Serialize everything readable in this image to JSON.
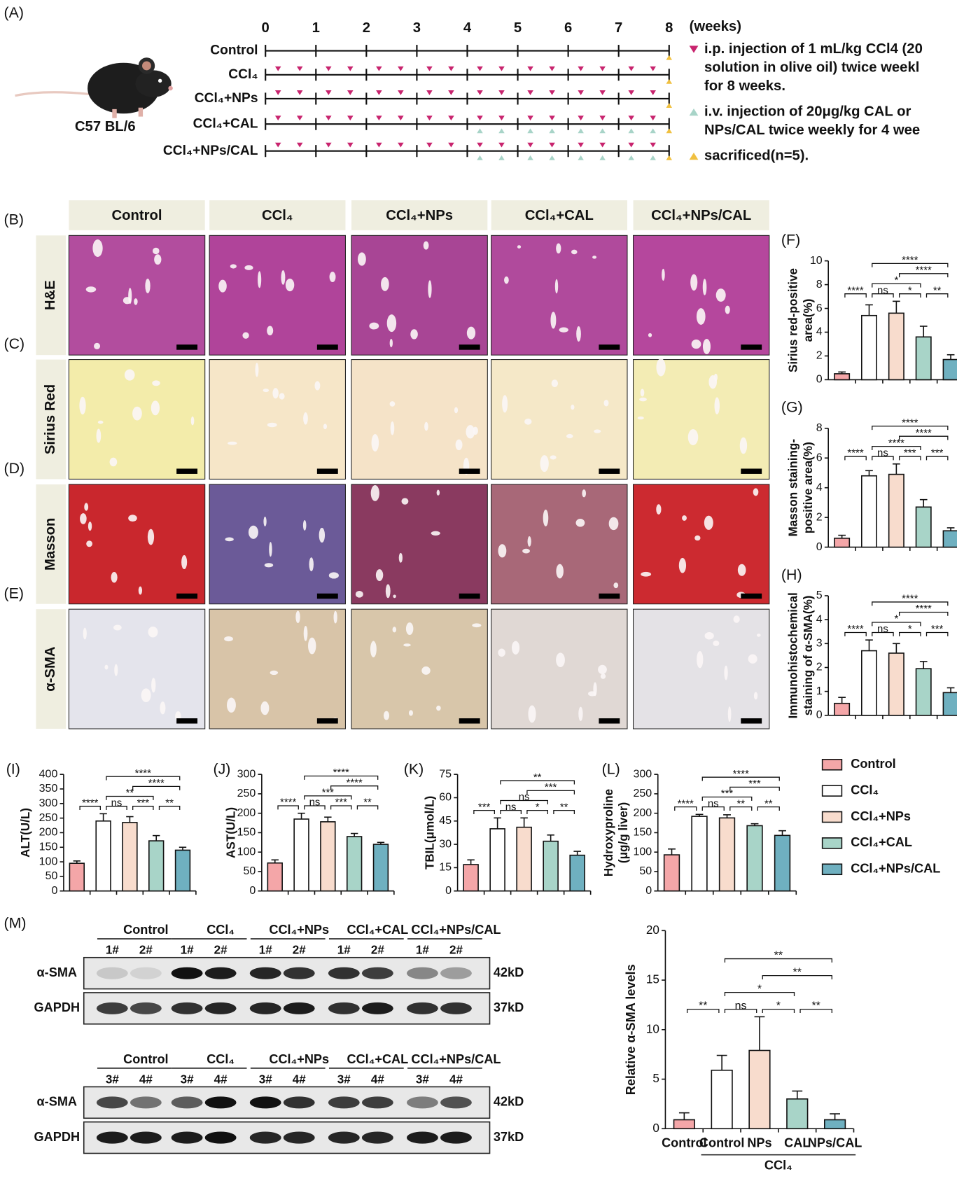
{
  "timeline": {
    "label": "(A)",
    "strain": "C57 BL/6",
    "unit": "(weeks)",
    "xlim": [
      0,
      8
    ],
    "xticks": [
      0,
      1,
      2,
      3,
      4,
      5,
      6,
      7,
      8
    ],
    "groups": [
      "Control",
      "CCl₄",
      "CCl₄+NPs",
      "CCl₄+CAL",
      "CCl₄+NPs/CAL"
    ],
    "legend": [
      {
        "color": "#c8246e",
        "text": [
          "i.p. injection of 1 mL/kg CCl4 (20",
          "solution in olive oil) twice weekl",
          "for 8 weeks."
        ]
      },
      {
        "color": "#a8d4c8",
        "text": [
          "i.v. injection of 20μg/kg CAL or",
          "NPs/CAL twice weekly for 4 wee"
        ]
      },
      {
        "color": "#f0c040",
        "text": [
          "sacrificed(n=5)."
        ]
      }
    ]
  },
  "histology": {
    "columns": [
      "Control",
      "CCl₄",
      "CCl₄+NPs",
      "CCl₄+CAL",
      "CCl₄+NPs/CAL"
    ],
    "rows": [
      {
        "label": "(B)",
        "name": "H&E"
      },
      {
        "label": "(C)",
        "name": "Sirius Red"
      },
      {
        "label": "(D)",
        "name": "Masson"
      },
      {
        "label": "(E)",
        "name": "α-SMA"
      }
    ]
  },
  "legend": {
    "names": [
      "Control",
      "CCl₄",
      "CCl₄+NPs",
      "CCl₄+CAL",
      "CCl₄+NPs/CAL"
    ],
    "colors": [
      "#f4a6a8",
      "#ffffff",
      "#f8dccd",
      "#a8d4c8",
      "#6fb0c0"
    ]
  },
  "chart_data": [
    {
      "type": "bar",
      "label": "(F)",
      "ylabel": [
        "Sirius red-positive",
        "area(%)"
      ],
      "ylim": [
        0,
        10
      ],
      "yticks": [
        0,
        2,
        4,
        6,
        8,
        10
      ],
      "categories": [
        null,
        null,
        null,
        null,
        null
      ],
      "values": [
        0.5,
        5.4,
        5.6,
        3.6,
        1.7
      ],
      "errors": [
        0.15,
        0.9,
        1.0,
        0.9,
        0.4
      ],
      "colors": [
        "#f4a6a8",
        "#ffffff",
        "#f8dccd",
        "#a8d4c8",
        "#6fb0c0"
      ],
      "annotations": [
        {
          "text": "****",
          "pair": [
            0,
            1
          ],
          "level": 0
        },
        {
          "text": "ns",
          "pair": [
            1,
            2
          ],
          "level": 0
        },
        {
          "text": "*",
          "pair": [
            2,
            3
          ],
          "level": 0
        },
        {
          "text": "**",
          "pair": [
            3,
            4
          ],
          "level": 0
        },
        {
          "text": "*",
          "pair": [
            1,
            3
          ],
          "level": 1
        },
        {
          "text": "****",
          "pair": [
            2,
            4
          ],
          "level": 2
        },
        {
          "text": "****",
          "pair": [
            1,
            4
          ],
          "level": 3
        }
      ]
    },
    {
      "type": "bar",
      "label": "(G)",
      "ylabel": [
        "Masson staining-",
        "positive area(%)"
      ],
      "ylim": [
        0,
        8
      ],
      "yticks": [
        0,
        2,
        4,
        6,
        8
      ],
      "categories": [
        null,
        null,
        null,
        null,
        null
      ],
      "values": [
        0.6,
        4.8,
        4.9,
        2.7,
        1.1
      ],
      "errors": [
        0.2,
        0.35,
        0.7,
        0.5,
        0.2
      ],
      "colors": [
        "#f4a6a8",
        "#ffffff",
        "#f8dccd",
        "#a8d4c8",
        "#6fb0c0"
      ],
      "annotations": [
        {
          "text": "****",
          "pair": [
            0,
            1
          ],
          "level": 0
        },
        {
          "text": "ns",
          "pair": [
            1,
            2
          ],
          "level": 0
        },
        {
          "text": "***",
          "pair": [
            2,
            3
          ],
          "level": 0
        },
        {
          "text": "***",
          "pair": [
            3,
            4
          ],
          "level": 0
        },
        {
          "text": "****",
          "pair": [
            1,
            3
          ],
          "level": 1
        },
        {
          "text": "****",
          "pair": [
            2,
            4
          ],
          "level": 2
        },
        {
          "text": "****",
          "pair": [
            1,
            4
          ],
          "level": 3
        }
      ]
    },
    {
      "type": "bar",
      "label": "(H)",
      "ylabel": [
        "Immunohistochemical",
        "staining of α-SMA(%)"
      ],
      "ylim": [
        0,
        5
      ],
      "yticks": [
        0,
        1,
        2,
        3,
        4,
        5
      ],
      "categories": [
        null,
        null,
        null,
        null,
        null
      ],
      "values": [
        0.5,
        2.7,
        2.6,
        1.95,
        0.95
      ],
      "errors": [
        0.25,
        0.45,
        0.4,
        0.3,
        0.2
      ],
      "colors": [
        "#f4a6a8",
        "#ffffff",
        "#f8dccd",
        "#a8d4c8",
        "#6fb0c0"
      ],
      "annotations": [
        {
          "text": "****",
          "pair": [
            0,
            1
          ],
          "level": 0
        },
        {
          "text": "ns",
          "pair": [
            1,
            2
          ],
          "level": 0
        },
        {
          "text": "*",
          "pair": [
            2,
            3
          ],
          "level": 0
        },
        {
          "text": "***",
          "pair": [
            3,
            4
          ],
          "level": 0
        },
        {
          "text": "*",
          "pair": [
            1,
            3
          ],
          "level": 1
        },
        {
          "text": "****",
          "pair": [
            2,
            4
          ],
          "level": 2
        },
        {
          "text": "****",
          "pair": [
            1,
            4
          ],
          "level": 3
        }
      ]
    },
    {
      "type": "bar",
      "label": "(I)",
      "ylabel": [
        "ALT(U/L)"
      ],
      "ylim": [
        0,
        400
      ],
      "yticks": [
        0,
        50,
        100,
        150,
        200,
        250,
        300,
        350,
        400
      ],
      "categories": [
        null,
        null,
        null,
        null,
        null
      ],
      "values": [
        95,
        240,
        235,
        172,
        140
      ],
      "errors": [
        8,
        25,
        20,
        18,
        10
      ],
      "colors": [
        "#f4a6a8",
        "#ffffff",
        "#f8dccd",
        "#a8d4c8",
        "#6fb0c0"
      ],
      "annotations": [
        {
          "text": "****",
          "pair": [
            0,
            1
          ],
          "level": 0
        },
        {
          "text": "ns",
          "pair": [
            1,
            2
          ],
          "level": 0
        },
        {
          "text": "***",
          "pair": [
            2,
            3
          ],
          "level": 0
        },
        {
          "text": "**",
          "pair": [
            3,
            4
          ],
          "level": 0
        },
        {
          "text": "**",
          "pair": [
            1,
            3
          ],
          "level": 1
        },
        {
          "text": "****",
          "pair": [
            2,
            4
          ],
          "level": 2
        },
        {
          "text": "****",
          "pair": [
            1,
            4
          ],
          "level": 3
        }
      ]
    },
    {
      "type": "bar",
      "label": "(J)",
      "ylabel": [
        "AST(U/L)"
      ],
      "ylim": [
        0,
        300
      ],
      "yticks": [
        0,
        50,
        100,
        150,
        200,
        250,
        300
      ],
      "categories": [
        null,
        null,
        null,
        null,
        null
      ],
      "values": [
        72,
        185,
        178,
        140,
        120
      ],
      "errors": [
        8,
        15,
        12,
        8,
        5
      ],
      "colors": [
        "#f4a6a8",
        "#ffffff",
        "#f8dccd",
        "#a8d4c8",
        "#6fb0c0"
      ],
      "annotations": [
        {
          "text": "****",
          "pair": [
            0,
            1
          ],
          "level": 0
        },
        {
          "text": "ns",
          "pair": [
            1,
            2
          ],
          "level": 0
        },
        {
          "text": "***",
          "pair": [
            2,
            3
          ],
          "level": 0
        },
        {
          "text": "**",
          "pair": [
            3,
            4
          ],
          "level": 0
        },
        {
          "text": "***",
          "pair": [
            1,
            3
          ],
          "level": 1
        },
        {
          "text": "****",
          "pair": [
            2,
            4
          ],
          "level": 2
        },
        {
          "text": "****",
          "pair": [
            1,
            4
          ],
          "level": 3
        }
      ]
    },
    {
      "type": "bar",
      "label": "(K)",
      "ylabel": [
        "TBIL(μmol/L)"
      ],
      "ylim": [
        0,
        75
      ],
      "yticks": [
        0,
        15,
        30,
        45,
        60,
        75
      ],
      "categories": [
        null,
        null,
        null,
        null,
        null
      ],
      "values": [
        17,
        40,
        41,
        32,
        23
      ],
      "errors": [
        3,
        7,
        6,
        4,
        2.5
      ],
      "colors": [
        "#f4a6a8",
        "#ffffff",
        "#f8dccd",
        "#a8d4c8",
        "#6fb0c0"
      ],
      "annotations": [
        {
          "text": "***",
          "pair": [
            0,
            1
          ],
          "level": 0
        },
        {
          "text": "ns",
          "pair": [
            1,
            2
          ],
          "level": 0
        },
        {
          "text": "*",
          "pair": [
            2,
            3
          ],
          "level": 0
        },
        {
          "text": "**",
          "pair": [
            3,
            4
          ],
          "level": 0
        },
        {
          "text": "ns",
          "pair": [
            1,
            3
          ],
          "level": 1
        },
        {
          "text": "***",
          "pair": [
            2,
            4
          ],
          "level": 2
        },
        {
          "text": "**",
          "pair": [
            1,
            4
          ],
          "level": 3
        }
      ]
    },
    {
      "type": "bar",
      "label": "(L)",
      "ylabel": [
        "Hydroxyproline",
        "(μg/g liver)"
      ],
      "ylim": [
        0,
        300
      ],
      "yticks": [
        0,
        50,
        100,
        150,
        200,
        250,
        300
      ],
      "categories": [
        null,
        null,
        null,
        null,
        null
      ],
      "values": [
        93,
        192,
        188,
        168,
        143
      ],
      "errors": [
        15,
        5,
        8,
        5,
        12
      ],
      "colors": [
        "#f4a6a8",
        "#ffffff",
        "#f8dccd",
        "#a8d4c8",
        "#6fb0c0"
      ],
      "annotations": [
        {
          "text": "****",
          "pair": [
            0,
            1
          ],
          "level": 0
        },
        {
          "text": "ns",
          "pair": [
            1,
            2
          ],
          "level": 0
        },
        {
          "text": "**",
          "pair": [
            2,
            3
          ],
          "level": 0
        },
        {
          "text": "**",
          "pair": [
            3,
            4
          ],
          "level": 0
        },
        {
          "text": "***",
          "pair": [
            1,
            3
          ],
          "level": 1
        },
        {
          "text": "***",
          "pair": [
            2,
            4
          ],
          "level": 2
        },
        {
          "text": "****",
          "pair": [
            1,
            4
          ],
          "level": 3
        }
      ]
    },
    {
      "type": "bar",
      "label": "(M)",
      "ylabel": [
        "Relative α-SMA levels"
      ],
      "ylim": [
        0,
        20
      ],
      "yticks": [
        0,
        5,
        10,
        15,
        20
      ],
      "categories": [
        "Control",
        "Control",
        "NPs",
        "CAL",
        "NPs/CAL"
      ],
      "group_label": "CCl₄",
      "values": [
        0.9,
        5.9,
        7.9,
        3.0,
        0.9
      ],
      "errors": [
        0.7,
        1.5,
        3.4,
        0.8,
        0.6
      ],
      "colors": [
        "#f4a6a8",
        "#ffffff",
        "#f8dccd",
        "#a8d4c8",
        "#6fb0c0"
      ],
      "annotations": [
        {
          "text": "**",
          "pair": [
            0,
            1
          ],
          "level": 0
        },
        {
          "text": "ns",
          "pair": [
            1,
            2
          ],
          "level": 0
        },
        {
          "text": "*",
          "pair": [
            2,
            3
          ],
          "level": 0
        },
        {
          "text": "**",
          "pair": [
            3,
            4
          ],
          "level": 0
        },
        {
          "text": "*",
          "pair": [
            1,
            3
          ],
          "level": 1
        },
        {
          "text": "**",
          "pair": [
            2,
            4
          ],
          "level": 2
        },
        {
          "text": "**",
          "pair": [
            1,
            4
          ],
          "level": 3
        }
      ]
    }
  ],
  "blots": [
    {
      "groups": [
        "Control",
        "CCl₄",
        "CCl₄+NPs",
        "CCl₄+CAL",
        "CCl₄+NPs/CAL"
      ],
      "lanes": [
        "1#",
        "2#"
      ],
      "rows": [
        {
          "name": "α-SMA",
          "size": "42kD"
        },
        {
          "name": "GAPDH",
          "size": "37kD"
        }
      ]
    },
    {
      "groups": [
        "Control",
        "CCl₄",
        "CCl₄+NPs",
        "CCl₄+CAL",
        "CCl₄+NPs/CAL"
      ],
      "lanes": [
        "3#",
        "4#"
      ],
      "rows": [
        {
          "name": "α-SMA",
          "size": "42kD"
        },
        {
          "name": "GAPDH",
          "size": "37kD"
        }
      ]
    }
  ]
}
